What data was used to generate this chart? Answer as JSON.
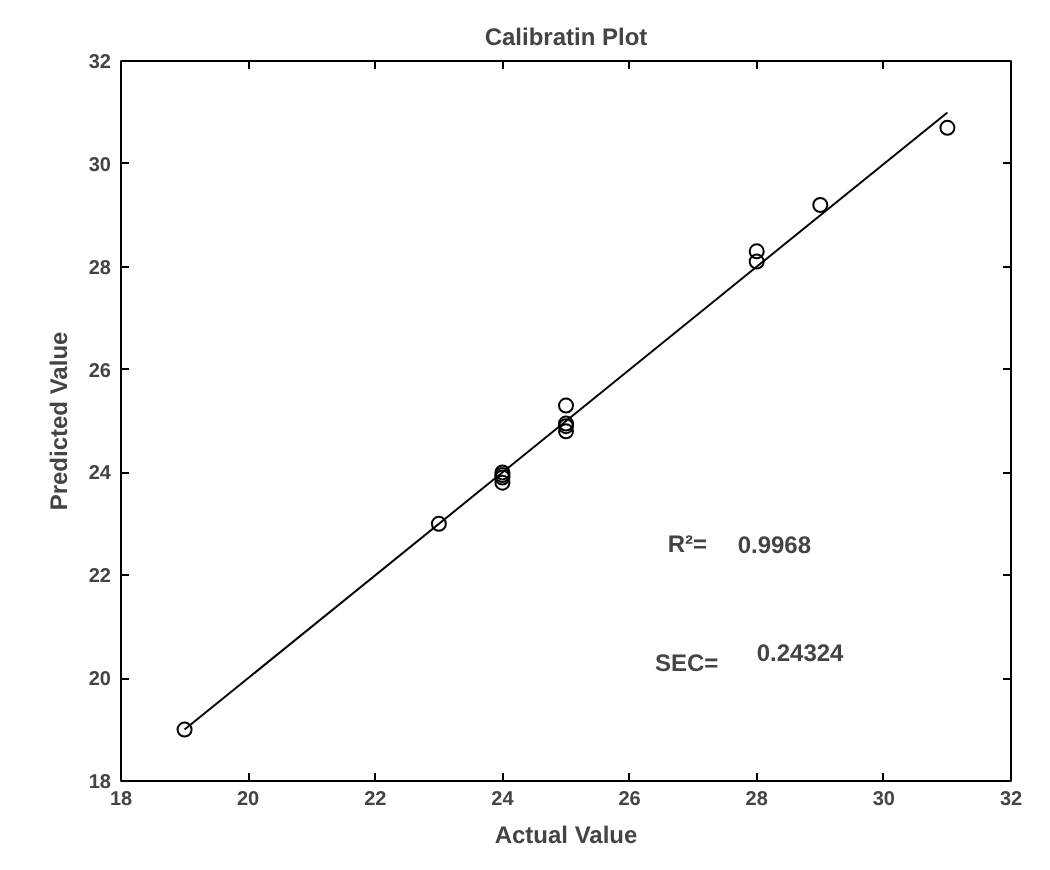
{
  "chart_data": {
    "type": "scatter",
    "title": "Calibratin Plot",
    "xlabel": "Actual Value",
    "ylabel": "Predicted Value",
    "xlim": [
      18,
      32
    ],
    "xticks": [
      18,
      20,
      22,
      24,
      26,
      28,
      30,
      32
    ],
    "ylim": [
      18,
      32
    ],
    "yticks": [
      18,
      20,
      22,
      24,
      26,
      28,
      30,
      32
    ],
    "grid": false,
    "marker": "circle",
    "series": [
      {
        "color": "#000000",
        "x": [
          19,
          23,
          24,
          24,
          24,
          24,
          25,
          25,
          25,
          25,
          28,
          28,
          29,
          31
        ],
        "values": [
          19.0,
          23.0,
          23.9,
          24.0,
          23.95,
          23.8,
          25.3,
          24.9,
          24.8,
          24.95,
          28.3,
          28.1,
          29.2,
          30.7
        ]
      },
      {
        "type": "line",
        "color": "#000000",
        "marker": "none",
        "x": [
          19,
          31
        ],
        "values": [
          19.0,
          31.0
        ]
      }
    ],
    "annotations": [
      "R²=",
      "0.9968",
      "SEC=",
      "0.24324"
    ]
  }
}
